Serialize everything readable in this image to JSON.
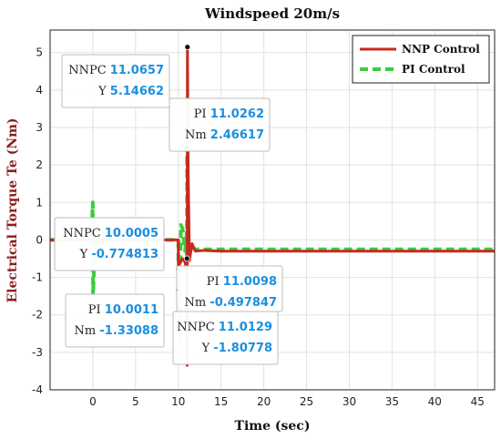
{
  "chart_data": {
    "type": "line",
    "title": "Windspeed 20m/s",
    "xlabel": "Time (sec)",
    "ylabel": "Electrical Torque Te (Nm)",
    "xlim": [
      -5,
      47
    ],
    "ylim": [
      -4,
      5.6
    ],
    "xticks": [
      0,
      5,
      10,
      15,
      20,
      25,
      30,
      35,
      40,
      45
    ],
    "yticks": [
      -4,
      -3,
      -2,
      -1,
      0,
      1,
      2,
      3,
      4,
      5
    ],
    "grid": true,
    "legend_position": "top-right",
    "series": [
      {
        "name": "NNP Control",
        "color": "#c8281e",
        "style": "solid",
        "x": [
          -5,
          10.0,
          10.0005,
          10.2,
          10.5,
          10.8,
          11.0,
          11.0129,
          11.03,
          11.0657,
          11.15,
          11.3,
          11.6,
          12.0,
          13.0,
          15.0,
          20.0,
          30.0,
          40.0,
          47.0
        ],
        "y": [
          0.0,
          0.0,
          -0.774813,
          -0.6,
          -0.5,
          -0.6,
          -0.9,
          -1.80778,
          -3.35,
          5.14662,
          1.8,
          -0.55,
          -0.1,
          -0.3,
          -0.28,
          -0.3,
          -0.3,
          -0.3,
          -0.3,
          -0.3
        ]
      },
      {
        "name": "PI Control",
        "color": "#3ccc3c",
        "style": "dashed",
        "x": [
          -5,
          -0.2,
          0.0,
          0.02,
          0.3,
          0.6,
          1.0,
          2.0,
          10.0,
          10.0011,
          10.1,
          10.3,
          10.5,
          10.8,
          11.0,
          11.0098,
          11.0262,
          11.2,
          11.5,
          12.0,
          13.0,
          15.0,
          20.0,
          30.0,
          40.0,
          47.0
        ],
        "y": [
          0.0,
          0.0,
          1.0,
          -1.5,
          0.2,
          -0.1,
          0.05,
          0.0,
          0.0,
          -1.33088,
          -2.7,
          0.4,
          0.3,
          -0.3,
          0.2,
          -0.497847,
          2.46617,
          -0.5,
          -0.2,
          -0.25,
          -0.25,
          -0.25,
          -0.25,
          -0.25,
          -0.25,
          -0.25
        ]
      }
    ],
    "annotations": [
      {
        "label1": "NNPC",
        "value1": "11.0657",
        "label2": "Y",
        "value2": "5.14662",
        "x": 11.0657,
        "y": 5.14662
      },
      {
        "label1": "PI",
        "value1": "11.0262",
        "label2": "Nm",
        "value2": "2.46617",
        "x": 11.0262,
        "y": 2.46617
      },
      {
        "label1": "NNPC",
        "value1": "10.0005",
        "label2": "Y",
        "value2": "-0.774813",
        "x": 10.0005,
        "y": -0.774813
      },
      {
        "label1": "PI",
        "value1": "11.0098",
        "label2": "Nm",
        "value2": "-0.497847",
        "x": 11.0098,
        "y": -0.497847
      },
      {
        "label1": "PI",
        "value1": "10.0011",
        "label2": "Nm",
        "value2": "-1.33088",
        "x": 10.0011,
        "y": -1.33088
      },
      {
        "label1": "NNPC",
        "value1": "11.0129",
        "label2": "Y",
        "value2": "-1.80778",
        "x": 11.0129,
        "y": -1.80778
      }
    ]
  }
}
